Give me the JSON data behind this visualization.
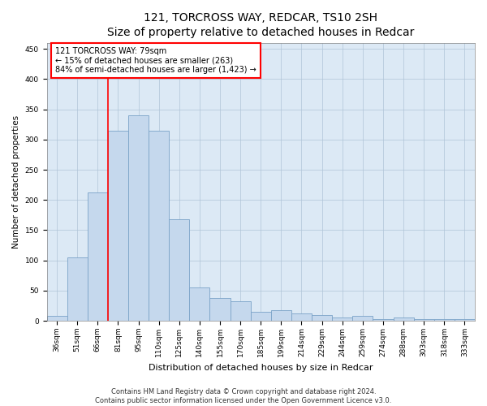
{
  "title": "121, TORCROSS WAY, REDCAR, TS10 2SH",
  "subtitle": "Size of property relative to detached houses in Redcar",
  "xlabel": "Distribution of detached houses by size in Redcar",
  "ylabel": "Number of detached properties",
  "categories": [
    "36sqm",
    "51sqm",
    "66sqm",
    "81sqm",
    "95sqm",
    "110sqm",
    "125sqm",
    "140sqm",
    "155sqm",
    "170sqm",
    "185sqm",
    "199sqm",
    "214sqm",
    "229sqm",
    "244sqm",
    "259sqm",
    "274sqm",
    "288sqm",
    "303sqm",
    "318sqm",
    "333sqm"
  ],
  "values": [
    8,
    105,
    212,
    315,
    340,
    315,
    168,
    55,
    38,
    32,
    15,
    18,
    12,
    9,
    5,
    8,
    3,
    5,
    3,
    3,
    3
  ],
  "bar_color": "#c5d8ed",
  "bar_edge_color": "#7ba3c8",
  "vline_x": 2.5,
  "annotation_lines": [
    "121 TORCROSS WAY: 79sqm",
    "← 15% of detached houses are smaller (263)",
    "84% of semi-detached houses are larger (1,423) →"
  ],
  "ylim": [
    0,
    460
  ],
  "yticks": [
    0,
    50,
    100,
    150,
    200,
    250,
    300,
    350,
    400,
    450
  ],
  "footer_line1": "Contains HM Land Registry data © Crown copyright and database right 2024.",
  "footer_line2": "Contains public sector information licensed under the Open Government Licence v3.0.",
  "bg_color": "#ffffff",
  "plot_bg_color": "#dce9f5",
  "grid_color": "#b0c4d8",
  "title_fontsize": 10,
  "xlabel_fontsize": 8,
  "ylabel_fontsize": 7.5,
  "tick_fontsize": 6.5,
  "annot_fontsize": 7,
  "footer_fontsize": 6
}
